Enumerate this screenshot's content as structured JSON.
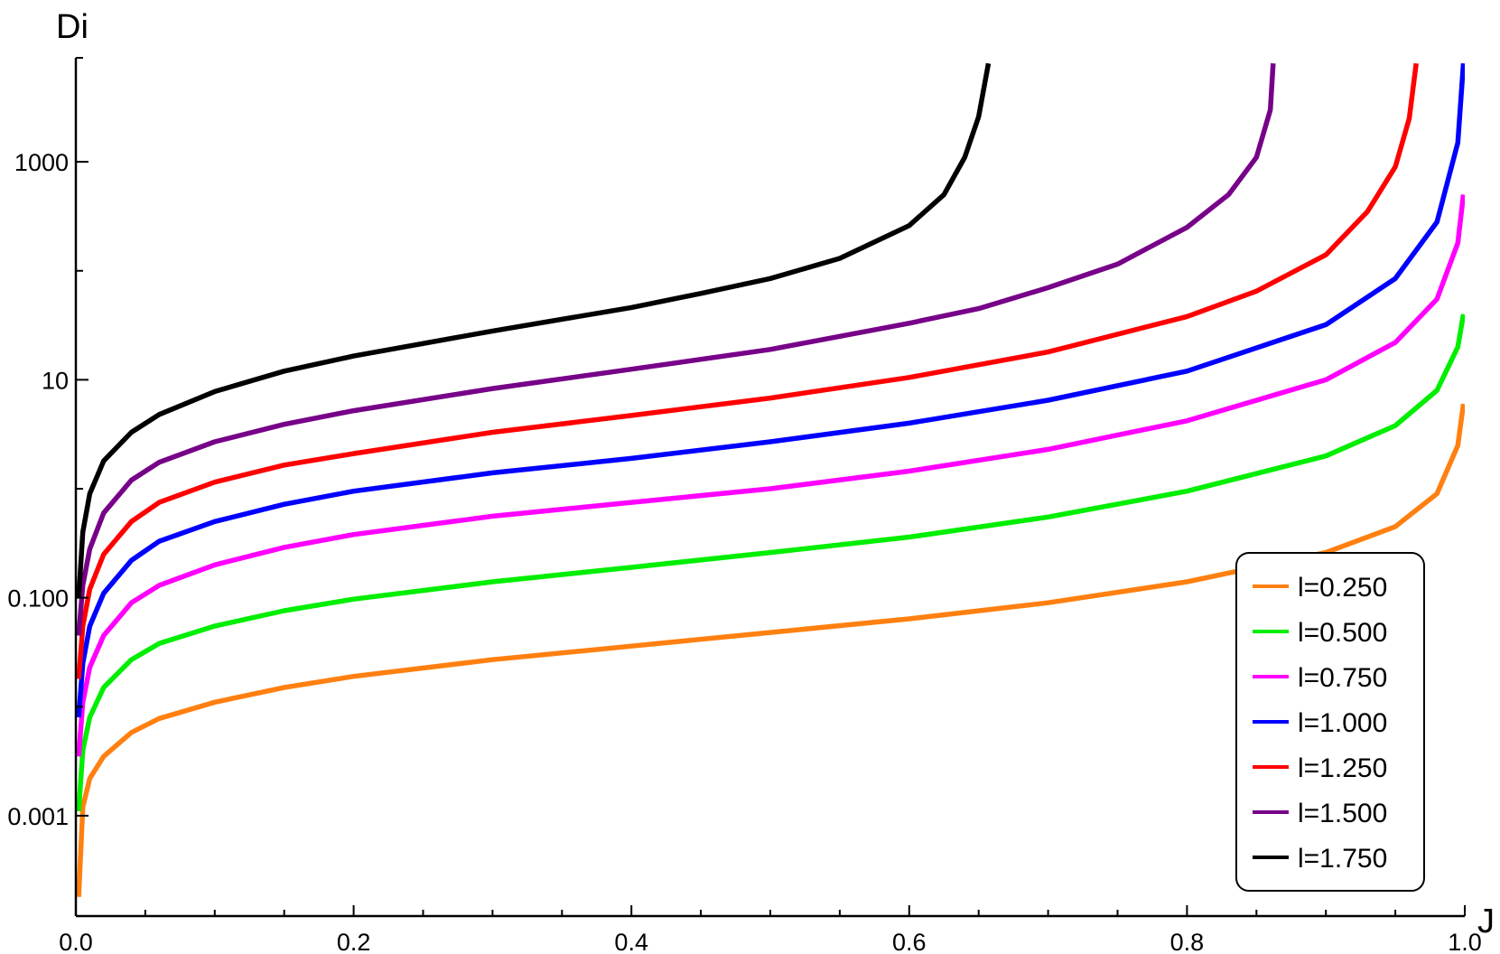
{
  "chart_data": {
    "type": "line",
    "xlabel": "J",
    "ylabel": "Di",
    "xlim": [
      0,
      1
    ],
    "ylim": [
      0.00012,
      9000
    ],
    "yscale": "log",
    "x_ticks": [
      "0.0",
      "0.2",
      "0.4",
      "0.6",
      "0.8",
      "1.0"
    ],
    "y_ticks": [
      {
        "value": 0.001,
        "label": "0.001"
      },
      {
        "value": 0.1,
        "label": "0.100"
      },
      {
        "value": 10,
        "label": "10"
      },
      {
        "value": 1000,
        "label": "1000"
      }
    ],
    "legend_position": "bottom-right",
    "grid": false,
    "series": [
      {
        "name": "l=0.250",
        "color": "#ff8010",
        "points": [
          [
            0.002,
            0.00018
          ],
          [
            0.005,
            0.0012
          ],
          [
            0.01,
            0.0022
          ],
          [
            0.02,
            0.0035
          ],
          [
            0.04,
            0.0058
          ],
          [
            0.06,
            0.0078
          ],
          [
            0.1,
            0.011
          ],
          [
            0.15,
            0.015
          ],
          [
            0.2,
            0.019
          ],
          [
            0.3,
            0.027
          ],
          [
            0.4,
            0.036
          ],
          [
            0.5,
            0.048
          ],
          [
            0.6,
            0.064
          ],
          [
            0.7,
            0.09
          ],
          [
            0.8,
            0.14
          ],
          [
            0.9,
            0.26
          ],
          [
            0.95,
            0.45
          ],
          [
            0.98,
            0.9
          ],
          [
            0.995,
            2.5
          ],
          [
            0.999,
            6
          ]
        ]
      },
      {
        "name": "l=0.500",
        "color": "#00ee00",
        "points": [
          [
            0.002,
            0.0011
          ],
          [
            0.005,
            0.004
          ],
          [
            0.01,
            0.008
          ],
          [
            0.02,
            0.015
          ],
          [
            0.04,
            0.027
          ],
          [
            0.06,
            0.038
          ],
          [
            0.1,
            0.055
          ],
          [
            0.15,
            0.076
          ],
          [
            0.2,
            0.097
          ],
          [
            0.3,
            0.14
          ],
          [
            0.4,
            0.19
          ],
          [
            0.5,
            0.26
          ],
          [
            0.6,
            0.36
          ],
          [
            0.7,
            0.55
          ],
          [
            0.8,
            0.95
          ],
          [
            0.9,
            2.0
          ],
          [
            0.95,
            3.8
          ],
          [
            0.98,
            8
          ],
          [
            0.995,
            20
          ],
          [
            0.999,
            40
          ]
        ]
      },
      {
        "name": "l=0.750",
        "color": "#ff00ff",
        "points": [
          [
            0.002,
            0.0035
          ],
          [
            0.005,
            0.011
          ],
          [
            0.01,
            0.023
          ],
          [
            0.02,
            0.045
          ],
          [
            0.04,
            0.09
          ],
          [
            0.06,
            0.13
          ],
          [
            0.1,
            0.2
          ],
          [
            0.15,
            0.29
          ],
          [
            0.2,
            0.38
          ],
          [
            0.3,
            0.56
          ],
          [
            0.4,
            0.75
          ],
          [
            0.5,
            1.0
          ],
          [
            0.6,
            1.45
          ],
          [
            0.7,
            2.3
          ],
          [
            0.8,
            4.2
          ],
          [
            0.9,
            10
          ],
          [
            0.95,
            22
          ],
          [
            0.98,
            55
          ],
          [
            0.995,
            180
          ],
          [
            0.999,
            500
          ]
        ]
      },
      {
        "name": "l=1.000",
        "color": "#0000ff",
        "points": [
          [
            0.002,
            0.008
          ],
          [
            0.005,
            0.025
          ],
          [
            0.01,
            0.055
          ],
          [
            0.02,
            0.11
          ],
          [
            0.04,
            0.22
          ],
          [
            0.06,
            0.33
          ],
          [
            0.1,
            0.5
          ],
          [
            0.15,
            0.72
          ],
          [
            0.2,
            0.95
          ],
          [
            0.3,
            1.4
          ],
          [
            0.4,
            1.9
          ],
          [
            0.5,
            2.7
          ],
          [
            0.6,
            4.0
          ],
          [
            0.7,
            6.5
          ],
          [
            0.8,
            12
          ],
          [
            0.9,
            32
          ],
          [
            0.95,
            85
          ],
          [
            0.98,
            280
          ],
          [
            0.995,
            1500
          ],
          [
            0.999,
            8000
          ]
        ]
      },
      {
        "name": "l=1.250",
        "color": "#ff0000",
        "points": [
          [
            0.002,
            0.018
          ],
          [
            0.005,
            0.055
          ],
          [
            0.01,
            0.12
          ],
          [
            0.02,
            0.25
          ],
          [
            0.04,
            0.5
          ],
          [
            0.06,
            0.75
          ],
          [
            0.1,
            1.15
          ],
          [
            0.15,
            1.65
          ],
          [
            0.2,
            2.1
          ],
          [
            0.3,
            3.3
          ],
          [
            0.4,
            4.7
          ],
          [
            0.5,
            6.8
          ],
          [
            0.6,
            10.5
          ],
          [
            0.7,
            18
          ],
          [
            0.8,
            38
          ],
          [
            0.85,
            65
          ],
          [
            0.9,
            140
          ],
          [
            0.93,
            350
          ],
          [
            0.95,
            900
          ],
          [
            0.96,
            2500
          ],
          [
            0.965,
            8000
          ]
        ]
      },
      {
        "name": "l=1.500",
        "color": "#770088",
        "points": [
          [
            0.002,
            0.045
          ],
          [
            0.005,
            0.13
          ],
          [
            0.01,
            0.28
          ],
          [
            0.02,
            0.6
          ],
          [
            0.04,
            1.2
          ],
          [
            0.06,
            1.75
          ],
          [
            0.1,
            2.7
          ],
          [
            0.15,
            3.9
          ],
          [
            0.2,
            5.2
          ],
          [
            0.3,
            8.3
          ],
          [
            0.4,
            12.5
          ],
          [
            0.5,
            19
          ],
          [
            0.6,
            33
          ],
          [
            0.65,
            45
          ],
          [
            0.7,
            70
          ],
          [
            0.75,
            115
          ],
          [
            0.8,
            250
          ],
          [
            0.83,
            500
          ],
          [
            0.85,
            1100
          ],
          [
            0.86,
            3000
          ],
          [
            0.862,
            8000
          ]
        ]
      },
      {
        "name": "l=1.750",
        "color": "#000000",
        "points": [
          [
            0.002,
            0.1
          ],
          [
            0.005,
            0.4
          ],
          [
            0.01,
            0.9
          ],
          [
            0.02,
            1.8
          ],
          [
            0.04,
            3.3
          ],
          [
            0.06,
            4.8
          ],
          [
            0.1,
            7.8
          ],
          [
            0.15,
            12
          ],
          [
            0.2,
            16.5
          ],
          [
            0.3,
            28
          ],
          [
            0.4,
            46
          ],
          [
            0.45,
            62
          ],
          [
            0.5,
            85
          ],
          [
            0.55,
            130
          ],
          [
            0.6,
            260
          ],
          [
            0.625,
            500
          ],
          [
            0.64,
            1100
          ],
          [
            0.65,
            2600
          ],
          [
            0.657,
            8000
          ]
        ]
      }
    ]
  }
}
